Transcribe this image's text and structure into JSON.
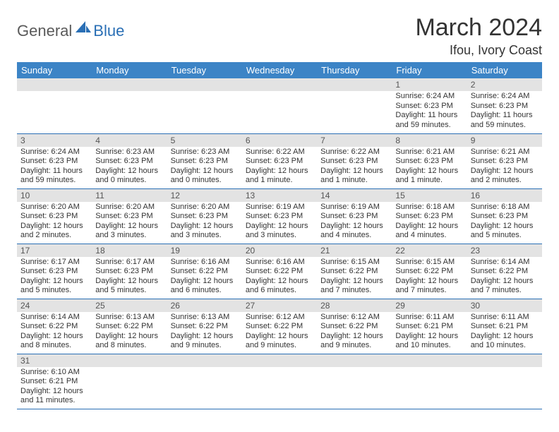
{
  "logo": {
    "word1": "General",
    "word2": "Blue",
    "word1_color": "#5a5a5a",
    "word2_color": "#2a6fb5"
  },
  "title": "March 2024",
  "location": "Ifou, Ivory Coast",
  "colors": {
    "header_bg": "#3c84c6",
    "header_fg": "#ffffff",
    "daynum_bg": "#e3e3e3",
    "row_border": "#2a6fb5"
  },
  "weekdays": [
    "Sunday",
    "Monday",
    "Tuesday",
    "Wednesday",
    "Thursday",
    "Friday",
    "Saturday"
  ],
  "weeks": [
    [
      null,
      null,
      null,
      null,
      null,
      {
        "n": "1",
        "sr": "Sunrise: 6:24 AM",
        "ss": "Sunset: 6:23 PM",
        "dl": "Daylight: 11 hours and 59 minutes."
      },
      {
        "n": "2",
        "sr": "Sunrise: 6:24 AM",
        "ss": "Sunset: 6:23 PM",
        "dl": "Daylight: 11 hours and 59 minutes."
      }
    ],
    [
      {
        "n": "3",
        "sr": "Sunrise: 6:24 AM",
        "ss": "Sunset: 6:23 PM",
        "dl": "Daylight: 11 hours and 59 minutes."
      },
      {
        "n": "4",
        "sr": "Sunrise: 6:23 AM",
        "ss": "Sunset: 6:23 PM",
        "dl": "Daylight: 12 hours and 0 minutes."
      },
      {
        "n": "5",
        "sr": "Sunrise: 6:23 AM",
        "ss": "Sunset: 6:23 PM",
        "dl": "Daylight: 12 hours and 0 minutes."
      },
      {
        "n": "6",
        "sr": "Sunrise: 6:22 AM",
        "ss": "Sunset: 6:23 PM",
        "dl": "Daylight: 12 hours and 1 minute."
      },
      {
        "n": "7",
        "sr": "Sunrise: 6:22 AM",
        "ss": "Sunset: 6:23 PM",
        "dl": "Daylight: 12 hours and 1 minute."
      },
      {
        "n": "8",
        "sr": "Sunrise: 6:21 AM",
        "ss": "Sunset: 6:23 PM",
        "dl": "Daylight: 12 hours and 1 minute."
      },
      {
        "n": "9",
        "sr": "Sunrise: 6:21 AM",
        "ss": "Sunset: 6:23 PM",
        "dl": "Daylight: 12 hours and 2 minutes."
      }
    ],
    [
      {
        "n": "10",
        "sr": "Sunrise: 6:20 AM",
        "ss": "Sunset: 6:23 PM",
        "dl": "Daylight: 12 hours and 2 minutes."
      },
      {
        "n": "11",
        "sr": "Sunrise: 6:20 AM",
        "ss": "Sunset: 6:23 PM",
        "dl": "Daylight: 12 hours and 3 minutes."
      },
      {
        "n": "12",
        "sr": "Sunrise: 6:20 AM",
        "ss": "Sunset: 6:23 PM",
        "dl": "Daylight: 12 hours and 3 minutes."
      },
      {
        "n": "13",
        "sr": "Sunrise: 6:19 AM",
        "ss": "Sunset: 6:23 PM",
        "dl": "Daylight: 12 hours and 3 minutes."
      },
      {
        "n": "14",
        "sr": "Sunrise: 6:19 AM",
        "ss": "Sunset: 6:23 PM",
        "dl": "Daylight: 12 hours and 4 minutes."
      },
      {
        "n": "15",
        "sr": "Sunrise: 6:18 AM",
        "ss": "Sunset: 6:23 PM",
        "dl": "Daylight: 12 hours and 4 minutes."
      },
      {
        "n": "16",
        "sr": "Sunrise: 6:18 AM",
        "ss": "Sunset: 6:23 PM",
        "dl": "Daylight: 12 hours and 5 minutes."
      }
    ],
    [
      {
        "n": "17",
        "sr": "Sunrise: 6:17 AM",
        "ss": "Sunset: 6:23 PM",
        "dl": "Daylight: 12 hours and 5 minutes."
      },
      {
        "n": "18",
        "sr": "Sunrise: 6:17 AM",
        "ss": "Sunset: 6:23 PM",
        "dl": "Daylight: 12 hours and 5 minutes."
      },
      {
        "n": "19",
        "sr": "Sunrise: 6:16 AM",
        "ss": "Sunset: 6:22 PM",
        "dl": "Daylight: 12 hours and 6 minutes."
      },
      {
        "n": "20",
        "sr": "Sunrise: 6:16 AM",
        "ss": "Sunset: 6:22 PM",
        "dl": "Daylight: 12 hours and 6 minutes."
      },
      {
        "n": "21",
        "sr": "Sunrise: 6:15 AM",
        "ss": "Sunset: 6:22 PM",
        "dl": "Daylight: 12 hours and 7 minutes."
      },
      {
        "n": "22",
        "sr": "Sunrise: 6:15 AM",
        "ss": "Sunset: 6:22 PM",
        "dl": "Daylight: 12 hours and 7 minutes."
      },
      {
        "n": "23",
        "sr": "Sunrise: 6:14 AM",
        "ss": "Sunset: 6:22 PM",
        "dl": "Daylight: 12 hours and 7 minutes."
      }
    ],
    [
      {
        "n": "24",
        "sr": "Sunrise: 6:14 AM",
        "ss": "Sunset: 6:22 PM",
        "dl": "Daylight: 12 hours and 8 minutes."
      },
      {
        "n": "25",
        "sr": "Sunrise: 6:13 AM",
        "ss": "Sunset: 6:22 PM",
        "dl": "Daylight: 12 hours and 8 minutes."
      },
      {
        "n": "26",
        "sr": "Sunrise: 6:13 AM",
        "ss": "Sunset: 6:22 PM",
        "dl": "Daylight: 12 hours and 9 minutes."
      },
      {
        "n": "27",
        "sr": "Sunrise: 6:12 AM",
        "ss": "Sunset: 6:22 PM",
        "dl": "Daylight: 12 hours and 9 minutes."
      },
      {
        "n": "28",
        "sr": "Sunrise: 6:12 AM",
        "ss": "Sunset: 6:22 PM",
        "dl": "Daylight: 12 hours and 9 minutes."
      },
      {
        "n": "29",
        "sr": "Sunrise: 6:11 AM",
        "ss": "Sunset: 6:21 PM",
        "dl": "Daylight: 12 hours and 10 minutes."
      },
      {
        "n": "30",
        "sr": "Sunrise: 6:11 AM",
        "ss": "Sunset: 6:21 PM",
        "dl": "Daylight: 12 hours and 10 minutes."
      }
    ],
    [
      {
        "n": "31",
        "sr": "Sunrise: 6:10 AM",
        "ss": "Sunset: 6:21 PM",
        "dl": "Daylight: 12 hours and 11 minutes."
      },
      null,
      null,
      null,
      null,
      null,
      null
    ]
  ]
}
